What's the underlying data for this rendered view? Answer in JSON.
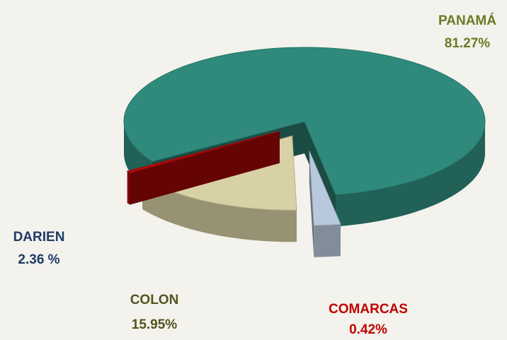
{
  "chart_data": {
    "type": "pie",
    "categories": [
      "PANAMÁ",
      "DARIEN",
      "COLON",
      "COMARCAS"
    ],
    "values": [
      81.27,
      2.36,
      15.95,
      0.42
    ],
    "value_labels": [
      "81.27%",
      "2.36 %",
      "15.95%",
      "0.42%"
    ],
    "colors": [
      "#2f8a7c",
      "#b9c9dd",
      "#d8d1a5",
      "#b50808"
    ],
    "label_colors": [
      "#6b7a26",
      "#1f3a66",
      "#55531f",
      "#c00000"
    ]
  }
}
